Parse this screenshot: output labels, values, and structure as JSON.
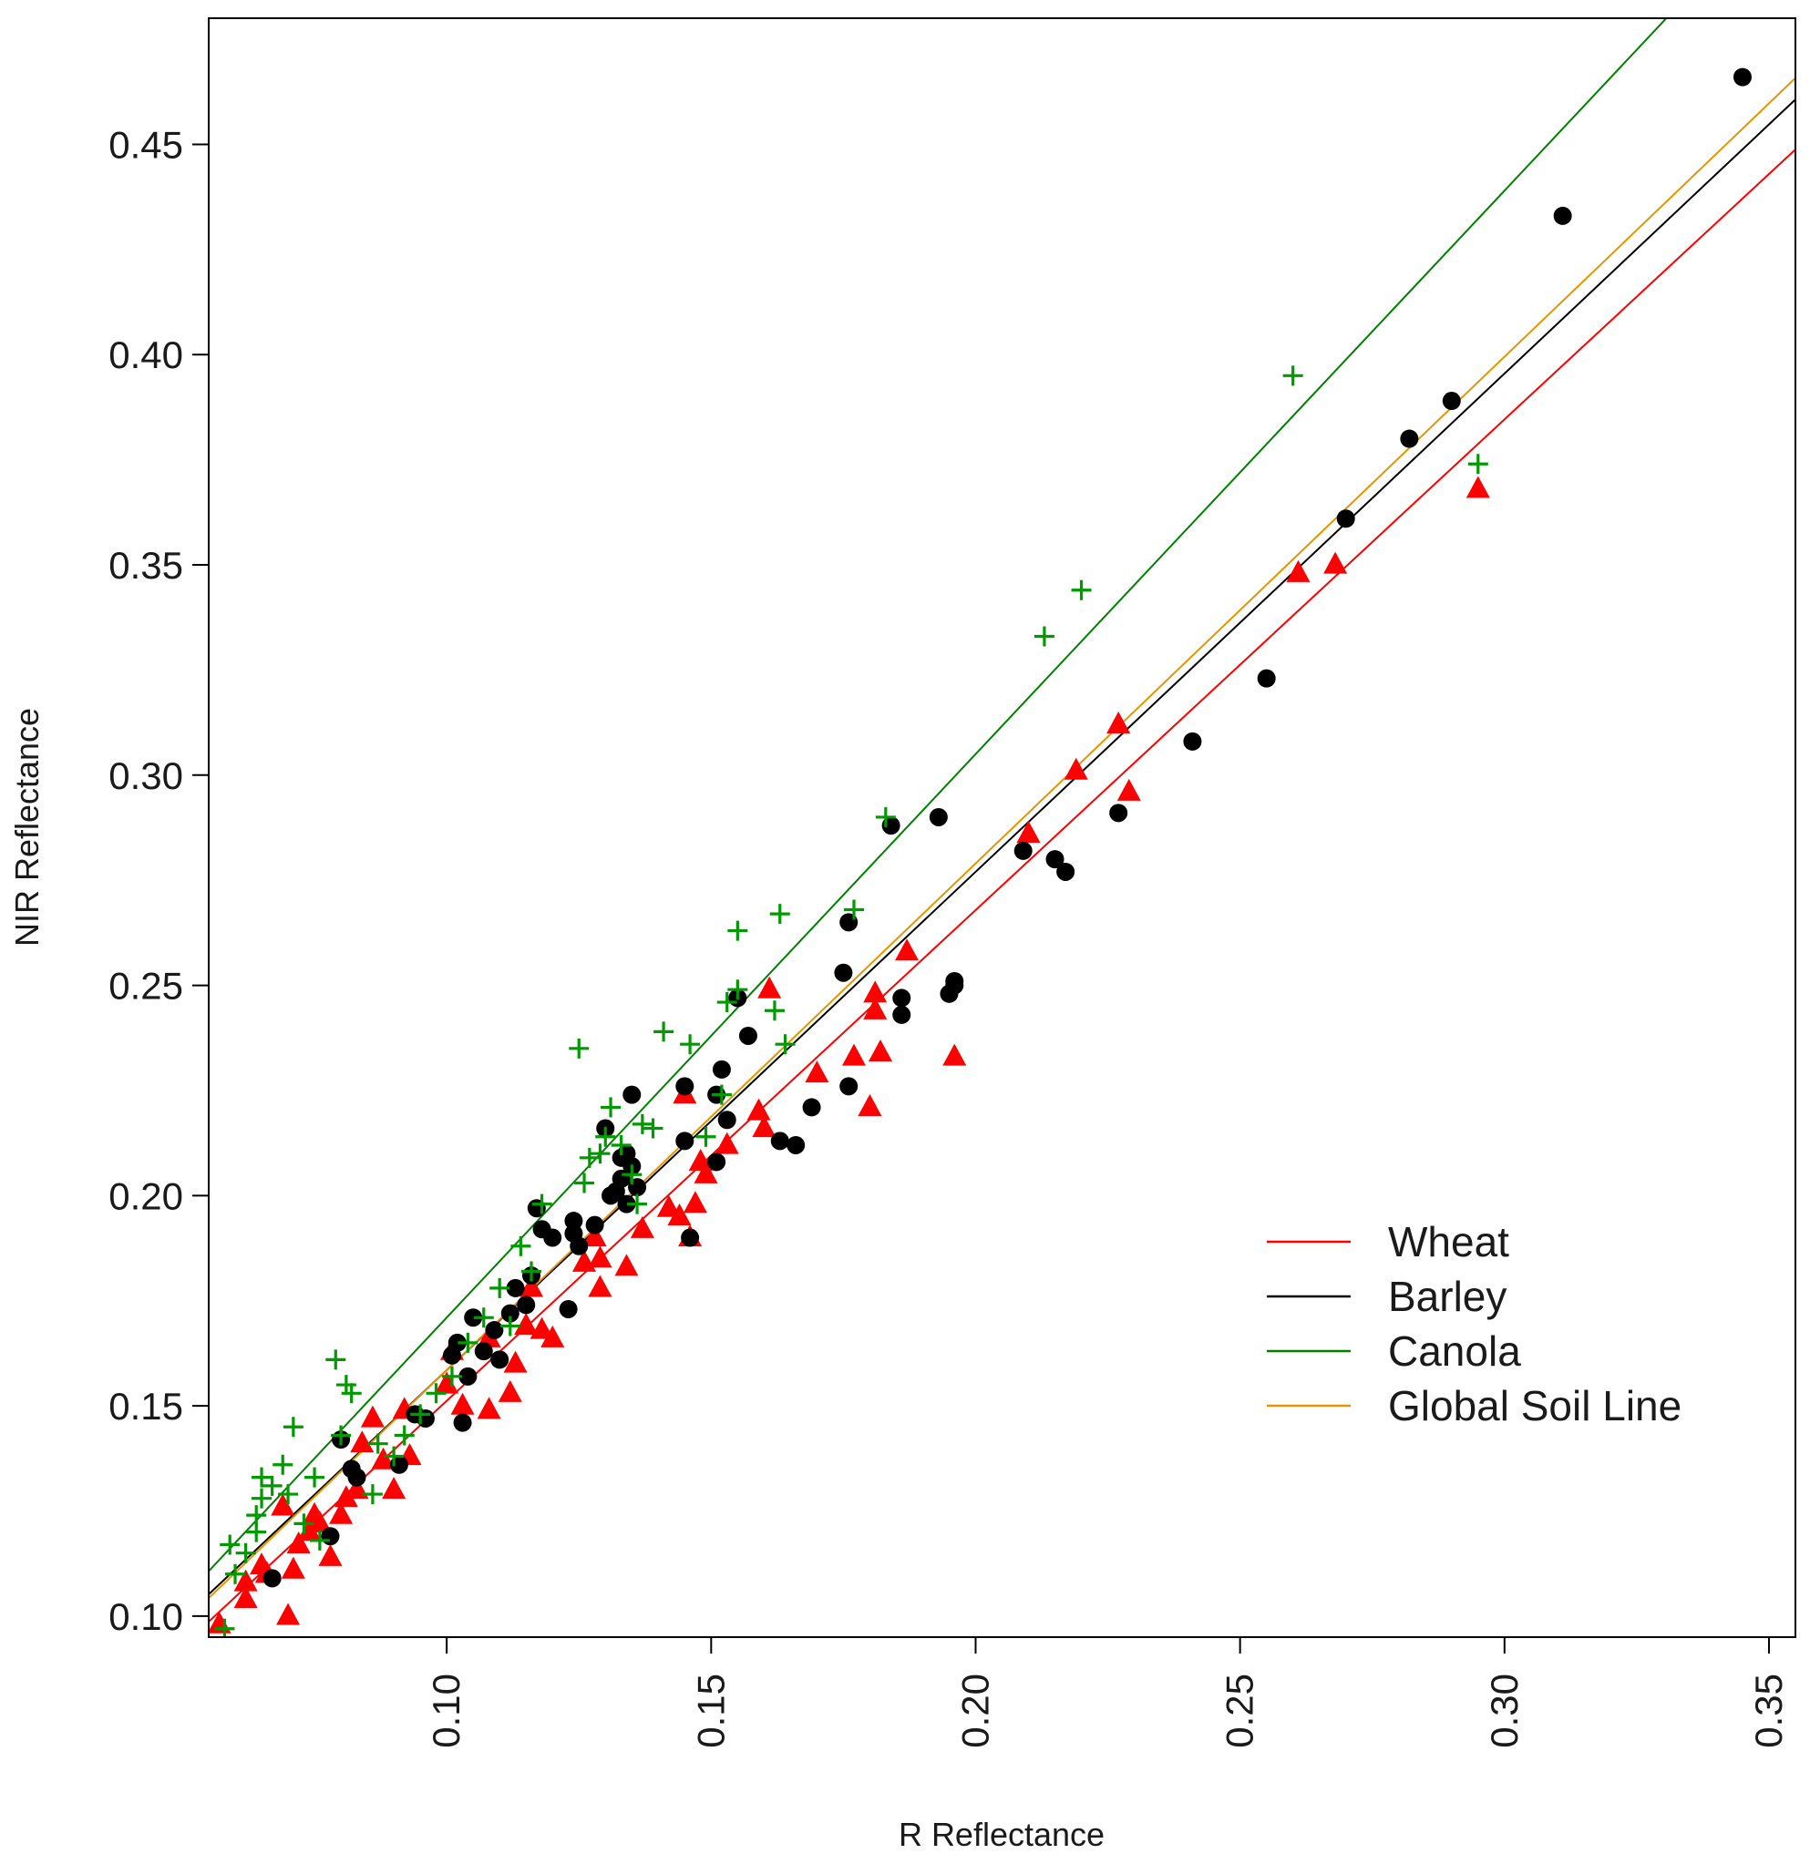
{
  "chart_data": {
    "type": "scatter",
    "title": "",
    "xlabel": "R Reflectance",
    "ylabel": "NIR Reflectance",
    "xlim": [
      0.055,
      0.355
    ],
    "ylim": [
      0.095,
      0.48
    ],
    "x_ticks": [
      "0.10",
      "0.15",
      "0.20",
      "0.25",
      "0.30",
      "0.35"
    ],
    "y_ticks": [
      "0.10",
      "0.15",
      "0.20",
      "0.25",
      "0.30",
      "0.35",
      "0.40",
      "0.45"
    ],
    "grid": false,
    "legend_position": "bottom-right",
    "lines": [
      {
        "name": "Wheat",
        "color": "#ff0000",
        "intercept": 0.0345,
        "slope": 1.167
      },
      {
        "name": "Barley",
        "color": "#000000",
        "intercept": 0.04,
        "slope": 1.185
      },
      {
        "name": "Canola",
        "color": "#008000",
        "intercept": 0.037,
        "slope": 1.34
      },
      {
        "name": "Global Soil Line",
        "color": "#e69500",
        "intercept": 0.038,
        "slope": 1.205
      }
    ],
    "series": [
      {
        "name": "Wheat",
        "marker": "triangle",
        "color": "#ff0000",
        "points": [
          [
            0.057,
            0.098
          ],
          [
            0.062,
            0.104
          ],
          [
            0.062,
            0.108
          ],
          [
            0.065,
            0.112
          ],
          [
            0.066,
            0.11
          ],
          [
            0.069,
            0.126
          ],
          [
            0.07,
            0.1
          ],
          [
            0.071,
            0.111
          ],
          [
            0.072,
            0.117
          ],
          [
            0.074,
            0.12
          ],
          [
            0.075,
            0.124
          ],
          [
            0.076,
            0.122
          ],
          [
            0.078,
            0.114
          ],
          [
            0.08,
            0.124
          ],
          [
            0.081,
            0.128
          ],
          [
            0.083,
            0.13
          ],
          [
            0.084,
            0.141
          ],
          [
            0.086,
            0.147
          ],
          [
            0.088,
            0.137
          ],
          [
            0.09,
            0.13
          ],
          [
            0.092,
            0.149
          ],
          [
            0.093,
            0.138
          ],
          [
            0.1,
            0.155
          ],
          [
            0.101,
            0.163
          ],
          [
            0.103,
            0.15
          ],
          [
            0.108,
            0.166
          ],
          [
            0.108,
            0.149
          ],
          [
            0.112,
            0.153
          ],
          [
            0.113,
            0.16
          ],
          [
            0.115,
            0.169
          ],
          [
            0.116,
            0.178
          ],
          [
            0.118,
            0.168
          ],
          [
            0.12,
            0.166
          ],
          [
            0.126,
            0.184
          ],
          [
            0.128,
            0.19
          ],
          [
            0.129,
            0.185
          ],
          [
            0.129,
            0.178
          ],
          [
            0.134,
            0.183
          ],
          [
            0.137,
            0.192
          ],
          [
            0.142,
            0.197
          ],
          [
            0.144,
            0.195
          ],
          [
            0.145,
            0.224
          ],
          [
            0.146,
            0.19
          ],
          [
            0.147,
            0.198
          ],
          [
            0.148,
            0.208
          ],
          [
            0.149,
            0.205
          ],
          [
            0.153,
            0.212
          ],
          [
            0.159,
            0.22
          ],
          [
            0.16,
            0.216
          ],
          [
            0.161,
            0.249
          ],
          [
            0.17,
            0.229
          ],
          [
            0.177,
            0.233
          ],
          [
            0.18,
            0.221
          ],
          [
            0.181,
            0.244
          ],
          [
            0.181,
            0.248
          ],
          [
            0.182,
            0.234
          ],
          [
            0.187,
            0.258
          ],
          [
            0.196,
            0.233
          ],
          [
            0.21,
            0.286
          ],
          [
            0.219,
            0.301
          ],
          [
            0.227,
            0.312
          ],
          [
            0.229,
            0.296
          ],
          [
            0.261,
            0.348
          ],
          [
            0.268,
            0.35
          ],
          [
            0.295,
            0.368
          ]
        ]
      },
      {
        "name": "Barley",
        "marker": "circle",
        "color": "#000000",
        "points": [
          [
            0.067,
            0.109
          ],
          [
            0.078,
            0.119
          ],
          [
            0.08,
            0.142
          ],
          [
            0.082,
            0.135
          ],
          [
            0.083,
            0.133
          ],
          [
            0.091,
            0.136
          ],
          [
            0.094,
            0.148
          ],
          [
            0.096,
            0.147
          ],
          [
            0.101,
            0.162
          ],
          [
            0.102,
            0.165
          ],
          [
            0.103,
            0.146
          ],
          [
            0.104,
            0.157
          ],
          [
            0.105,
            0.171
          ],
          [
            0.107,
            0.163
          ],
          [
            0.109,
            0.168
          ],
          [
            0.11,
            0.161
          ],
          [
            0.112,
            0.172
          ],
          [
            0.113,
            0.178
          ],
          [
            0.115,
            0.174
          ],
          [
            0.116,
            0.181
          ],
          [
            0.117,
            0.197
          ],
          [
            0.118,
            0.192
          ],
          [
            0.12,
            0.19
          ],
          [
            0.123,
            0.173
          ],
          [
            0.124,
            0.191
          ],
          [
            0.124,
            0.194
          ],
          [
            0.125,
            0.188
          ],
          [
            0.128,
            0.193
          ],
          [
            0.13,
            0.216
          ],
          [
            0.131,
            0.2
          ],
          [
            0.132,
            0.201
          ],
          [
            0.133,
            0.204
          ],
          [
            0.133,
            0.209
          ],
          [
            0.134,
            0.198
          ],
          [
            0.134,
            0.21
          ],
          [
            0.135,
            0.224
          ],
          [
            0.135,
            0.207
          ],
          [
            0.136,
            0.202
          ],
          [
            0.145,
            0.213
          ],
          [
            0.145,
            0.226
          ],
          [
            0.146,
            0.19
          ],
          [
            0.151,
            0.224
          ],
          [
            0.151,
            0.208
          ],
          [
            0.152,
            0.23
          ],
          [
            0.153,
            0.218
          ],
          [
            0.155,
            0.247
          ],
          [
            0.157,
            0.238
          ],
          [
            0.163,
            0.213
          ],
          [
            0.166,
            0.212
          ],
          [
            0.169,
            0.221
          ],
          [
            0.175,
            0.253
          ],
          [
            0.176,
            0.226
          ],
          [
            0.176,
            0.265
          ],
          [
            0.184,
            0.288
          ],
          [
            0.186,
            0.243
          ],
          [
            0.186,
            0.247
          ],
          [
            0.193,
            0.29
          ],
          [
            0.195,
            0.248
          ],
          [
            0.196,
            0.25
          ],
          [
            0.196,
            0.251
          ],
          [
            0.209,
            0.282
          ],
          [
            0.215,
            0.28
          ],
          [
            0.217,
            0.277
          ],
          [
            0.227,
            0.291
          ],
          [
            0.241,
            0.308
          ],
          [
            0.255,
            0.323
          ],
          [
            0.27,
            0.361
          ],
          [
            0.282,
            0.38
          ],
          [
            0.29,
            0.389
          ],
          [
            0.311,
            0.433
          ],
          [
            0.345,
            0.466
          ]
        ]
      },
      {
        "name": "Canola",
        "marker": "plus",
        "color": "#009900",
        "points": [
          [
            0.058,
            0.097
          ],
          [
            0.059,
            0.117
          ],
          [
            0.06,
            0.11
          ],
          [
            0.062,
            0.115
          ],
          [
            0.064,
            0.12
          ],
          [
            0.064,
            0.124
          ],
          [
            0.065,
            0.128
          ],
          [
            0.065,
            0.133
          ],
          [
            0.067,
            0.131
          ],
          [
            0.069,
            0.136
          ],
          [
            0.07,
            0.129
          ],
          [
            0.071,
            0.145
          ],
          [
            0.073,
            0.122
          ],
          [
            0.075,
            0.133
          ],
          [
            0.076,
            0.118
          ],
          [
            0.079,
            0.161
          ],
          [
            0.08,
            0.143
          ],
          [
            0.081,
            0.155
          ],
          [
            0.082,
            0.153
          ],
          [
            0.086,
            0.129
          ],
          [
            0.087,
            0.141
          ],
          [
            0.09,
            0.138
          ],
          [
            0.092,
            0.143
          ],
          [
            0.095,
            0.148
          ],
          [
            0.098,
            0.153
          ],
          [
            0.101,
            0.157
          ],
          [
            0.104,
            0.165
          ],
          [
            0.107,
            0.171
          ],
          [
            0.11,
            0.178
          ],
          [
            0.112,
            0.169
          ],
          [
            0.114,
            0.188
          ],
          [
            0.116,
            0.182
          ],
          [
            0.118,
            0.198
          ],
          [
            0.125,
            0.235
          ],
          [
            0.126,
            0.203
          ],
          [
            0.127,
            0.209
          ],
          [
            0.129,
            0.21
          ],
          [
            0.13,
            0.214
          ],
          [
            0.131,
            0.221
          ],
          [
            0.133,
            0.212
          ],
          [
            0.135,
            0.205
          ],
          [
            0.136,
            0.198
          ],
          [
            0.137,
            0.217
          ],
          [
            0.139,
            0.216
          ],
          [
            0.141,
            0.239
          ],
          [
            0.146,
            0.236
          ],
          [
            0.149,
            0.214
          ],
          [
            0.152,
            0.224
          ],
          [
            0.153,
            0.246
          ],
          [
            0.155,
            0.263
          ],
          [
            0.155,
            0.249
          ],
          [
            0.162,
            0.244
          ],
          [
            0.163,
            0.267
          ],
          [
            0.164,
            0.236
          ],
          [
            0.177,
            0.268
          ],
          [
            0.183,
            0.29
          ],
          [
            0.213,
            0.333
          ],
          [
            0.22,
            0.344
          ],
          [
            0.26,
            0.395
          ],
          [
            0.295,
            0.374
          ]
        ]
      }
    ]
  }
}
